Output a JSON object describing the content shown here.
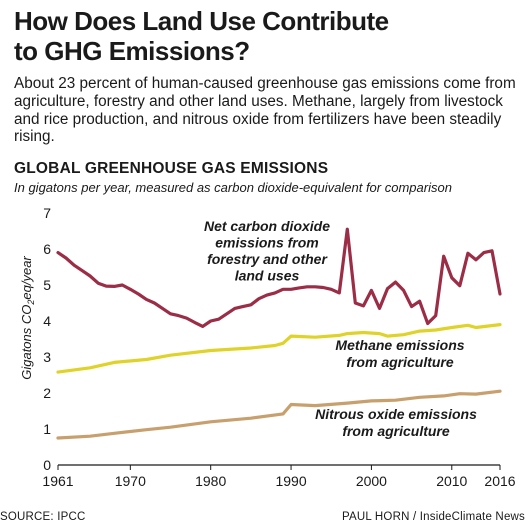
{
  "header": {
    "title_line1": "How Does Land Use Contribute",
    "title_line2": "to GHG Emissions?",
    "intro": "About 23 percent of human-caused greenhouse gas emissions come from agriculture, forestry and other land uses. Methane, largely from livestock and rice production, and nitrous oxide from fertilizers have been steadily rising."
  },
  "footer": {
    "source": "SOURCE: IPCC",
    "credit": "PAUL HORN / InsideClimate News"
  },
  "chart_data": {
    "type": "line",
    "title": "GLOBAL GREENHOUSE GAS EMISSIONS",
    "subtitle": "In gigatons per year, measured as carbon dioxide-equivalent for comparison",
    "ylabel": "Gigatons CO2eq/year",
    "xlim": [
      1961,
      2016
    ],
    "ylim": [
      0,
      7
    ],
    "x_ticks": [
      1961,
      1970,
      1980,
      1990,
      2000,
      2010,
      2016
    ],
    "y_ticks": [
      0,
      1,
      2,
      3,
      4,
      5,
      6,
      7
    ],
    "grid": false,
    "legend": "inline labels",
    "series": [
      {
        "name": "Net carbon dioxide emissions from forestry and other land uses",
        "label_lines": [
          "Net carbon dioxide",
          "emissions from",
          "forestry and other",
          "land uses"
        ],
        "color": "#9b2d46",
        "points": [
          [
            1961,
            5.9
          ],
          [
            1962,
            5.75
          ],
          [
            1963,
            5.55
          ],
          [
            1964,
            5.4
          ],
          [
            1965,
            5.25
          ],
          [
            1966,
            5.05
          ],
          [
            1967,
            4.97
          ],
          [
            1968,
            4.96
          ],
          [
            1969,
            5.0
          ],
          [
            1970,
            4.88
          ],
          [
            1971,
            4.75
          ],
          [
            1972,
            4.6
          ],
          [
            1973,
            4.5
          ],
          [
            1974,
            4.35
          ],
          [
            1975,
            4.2
          ],
          [
            1976,
            4.15
          ],
          [
            1977,
            4.08
          ],
          [
            1978,
            3.96
          ],
          [
            1979,
            3.85
          ],
          [
            1980,
            4.0
          ],
          [
            1981,
            4.05
          ],
          [
            1982,
            4.2
          ],
          [
            1983,
            4.35
          ],
          [
            1984,
            4.4
          ],
          [
            1985,
            4.45
          ],
          [
            1986,
            4.62
          ],
          [
            1987,
            4.72
          ],
          [
            1988,
            4.78
          ],
          [
            1989,
            4.88
          ],
          [
            1990,
            4.88
          ],
          [
            1991,
            4.92
          ],
          [
            1992,
            4.95
          ],
          [
            1993,
            4.95
          ],
          [
            1994,
            4.93
          ],
          [
            1995,
            4.88
          ],
          [
            1996,
            4.78
          ],
          [
            1997,
            6.55
          ],
          [
            1998,
            4.5
          ],
          [
            1999,
            4.42
          ],
          [
            2000,
            4.85
          ],
          [
            2001,
            4.35
          ],
          [
            2002,
            4.9
          ],
          [
            2003,
            5.08
          ],
          [
            2004,
            4.85
          ],
          [
            2005,
            4.4
          ],
          [
            2006,
            4.55
          ],
          [
            2007,
            3.93
          ],
          [
            2008,
            4.15
          ],
          [
            2009,
            5.8
          ],
          [
            2010,
            5.2
          ],
          [
            2011,
            4.98
          ],
          [
            2012,
            5.88
          ],
          [
            2013,
            5.7
          ],
          [
            2014,
            5.9
          ],
          [
            2015,
            5.95
          ],
          [
            2016,
            4.75
          ]
        ]
      },
      {
        "name": "Methane emissions from agriculture",
        "label_lines": [
          "Methane emissions",
          "from agriculture"
        ],
        "color": "#dfd32a",
        "points": [
          [
            1961,
            2.58
          ],
          [
            1965,
            2.7
          ],
          [
            1968,
            2.85
          ],
          [
            1972,
            2.93
          ],
          [
            1975,
            3.05
          ],
          [
            1980,
            3.18
          ],
          [
            1985,
            3.25
          ],
          [
            1988,
            3.32
          ],
          [
            1989,
            3.38
          ],
          [
            1990,
            3.58
          ],
          [
            1993,
            3.55
          ],
          [
            1996,
            3.6
          ],
          [
            1997,
            3.65
          ],
          [
            1999,
            3.68
          ],
          [
            2001,
            3.65
          ],
          [
            2002,
            3.58
          ],
          [
            2004,
            3.62
          ],
          [
            2006,
            3.72
          ],
          [
            2008,
            3.75
          ],
          [
            2010,
            3.82
          ],
          [
            2012,
            3.88
          ],
          [
            2013,
            3.82
          ],
          [
            2016,
            3.9
          ]
        ]
      },
      {
        "name": "Nitrous oxide emissions from agriculture",
        "label_lines": [
          "Nitrous oxide emissions",
          "from agriculture"
        ],
        "color": "#c8a06e",
        "points": [
          [
            1961,
            0.75
          ],
          [
            1965,
            0.8
          ],
          [
            1968,
            0.88
          ],
          [
            1972,
            0.98
          ],
          [
            1975,
            1.05
          ],
          [
            1980,
            1.2
          ],
          [
            1985,
            1.3
          ],
          [
            1989,
            1.42
          ],
          [
            1990,
            1.68
          ],
          [
            1993,
            1.65
          ],
          [
            1997,
            1.72
          ],
          [
            2000,
            1.78
          ],
          [
            2003,
            1.8
          ],
          [
            2006,
            1.88
          ],
          [
            2009,
            1.92
          ],
          [
            2011,
            1.98
          ],
          [
            2013,
            1.97
          ],
          [
            2016,
            2.05
          ]
        ]
      }
    ]
  }
}
